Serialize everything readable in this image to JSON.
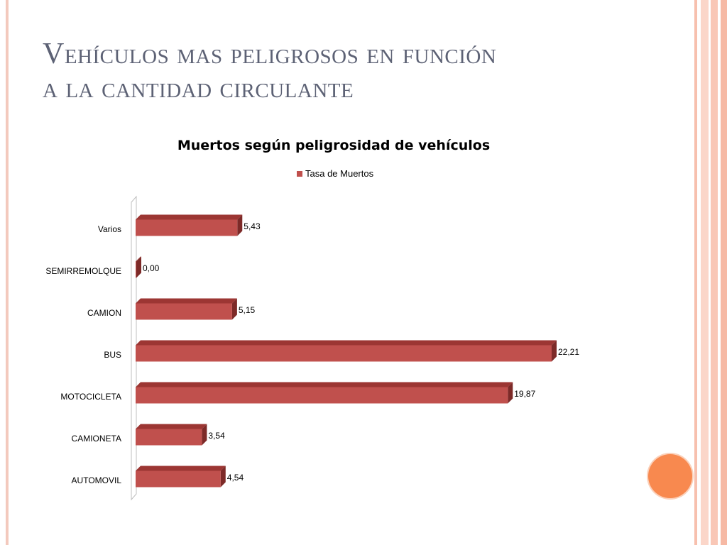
{
  "slide": {
    "title_line1": "Vehículos mas peligrosos en función",
    "title_line2": "a la cantidad circulante"
  },
  "colors": {
    "bar_front": "#c0504d",
    "bar_top": "#9c3633",
    "bar_side": "#7d2a28",
    "title_text": "#5d6275",
    "accent_circle": "#f8894f"
  },
  "chart_data": {
    "type": "bar",
    "orientation": "horizontal",
    "title": "Muertos según peligrosidad de vehículos",
    "legend_position": "top",
    "categories": [
      "Varios",
      "SEMIRREMOLQUE",
      "CAMION",
      "BUS",
      "MOTOCICLETA",
      "CAMIONETA",
      "AUTOMOVIL"
    ],
    "series": [
      {
        "name": "Tasa de Muertos",
        "values": [
          5.43,
          0.0,
          5.15,
          22.21,
          19.87,
          3.54,
          4.54
        ],
        "labels": [
          "5,43",
          "0,00",
          "5,15",
          "22,21",
          "19,87",
          "3,54",
          "4,54"
        ]
      }
    ],
    "xlim": [
      0,
      22.21
    ],
    "grid": false,
    "style": "3d"
  }
}
